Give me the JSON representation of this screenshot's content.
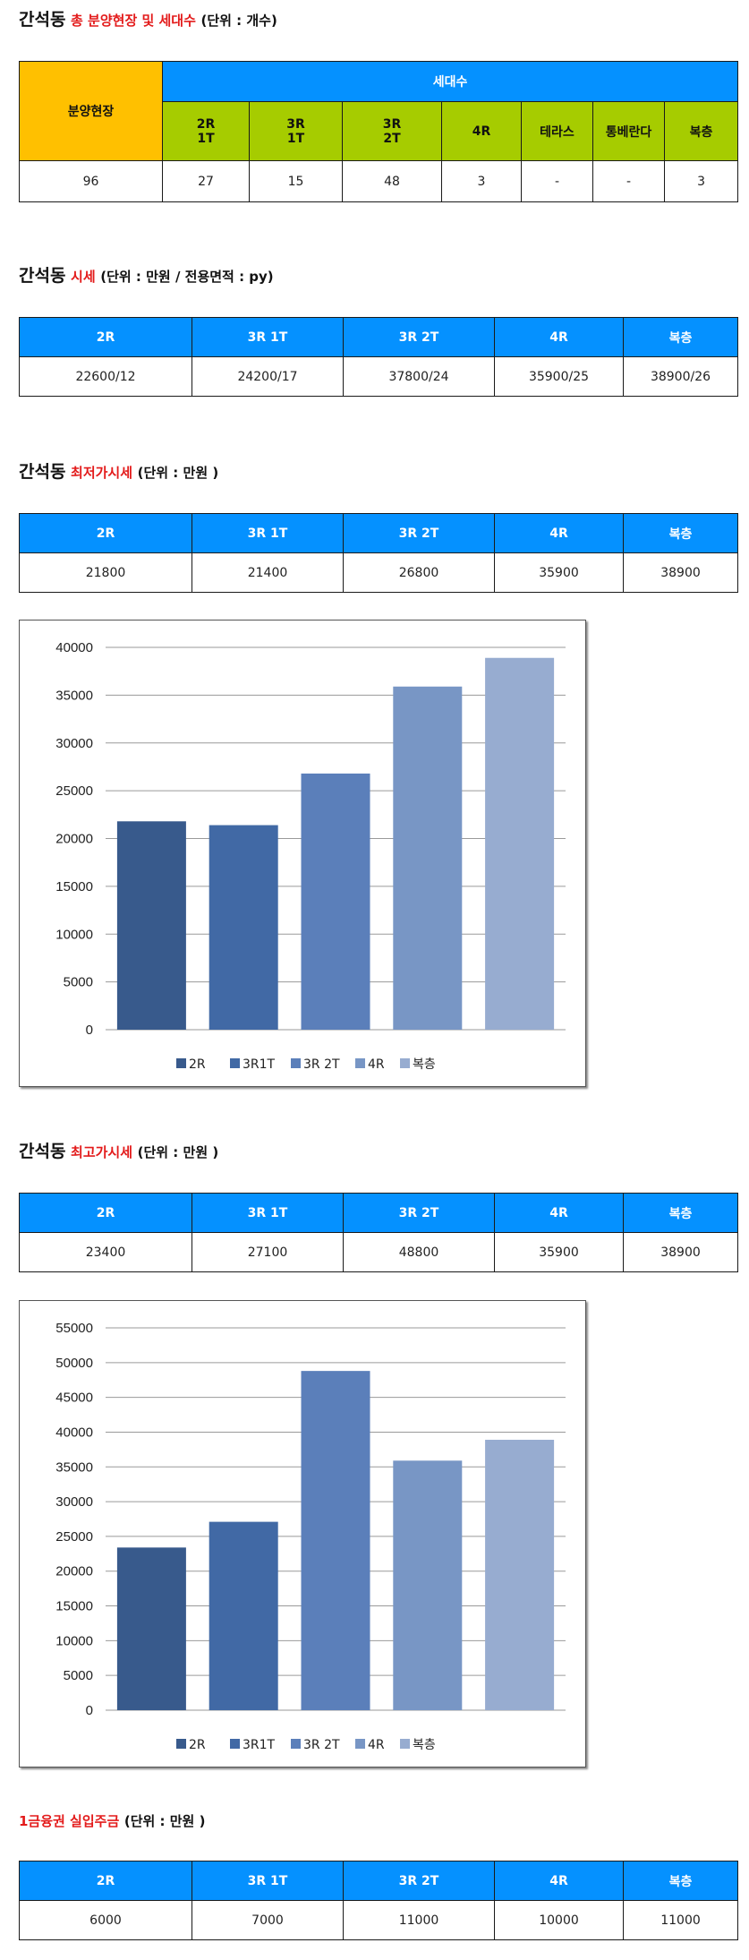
{
  "section1": {
    "title_main": "간석동",
    "title_red": "총 분양현장 및 세대수",
    "title_sub": "(단위 : 개수)",
    "header_sites": "분양현장",
    "header_households": "세대수",
    "sub_headers": [
      [
        "2R",
        "1T"
      ],
      [
        "3R",
        "1T"
      ],
      [
        "3R",
        "2T"
      ],
      [
        "4R"
      ],
      [
        "테라스"
      ],
      [
        "통베란다"
      ],
      [
        "복층"
      ]
    ],
    "values": [
      "96",
      "27",
      "15",
      "48",
      "3",
      "-",
      "-",
      "3"
    ]
  },
  "section2": {
    "title_main": "간석동",
    "title_red": "시세",
    "title_sub": "(단위 : 만원 / 전용면적 : py)",
    "headers": [
      "2R",
      "3R 1T",
      "3R 2T",
      "4R",
      "복층"
    ],
    "values": [
      "22600/12",
      "24200/17",
      "37800/24",
      "35900/25",
      "38900/26"
    ]
  },
  "section3": {
    "title_main": "간석동",
    "title_red": "최저가시세",
    "title_sub": "(단위 : 만원 )",
    "headers": [
      "2R",
      "3R 1T",
      "3R 2T",
      "4R",
      "복층"
    ],
    "values": [
      "21800",
      "21400",
      "26800",
      "35900",
      "38900"
    ]
  },
  "section4": {
    "title_main": "간석동",
    "title_red": "최고가시세",
    "title_sub": "(단위 : 만원 )",
    "headers": [
      "2R",
      "3R 1T",
      "3R 2T",
      "4R",
      "복층"
    ],
    "values": [
      "23400",
      "27100",
      "48800",
      "35900",
      "38900"
    ]
  },
  "section5": {
    "title_red": "1금융권 실입주금",
    "title_sub": "(단위 : 만원 )",
    "headers": [
      "2R",
      "3R 1T",
      "3R 2T",
      "4R",
      "복층"
    ],
    "values": [
      "6000",
      "7000",
      "11000",
      "10000",
      "11000"
    ]
  },
  "chart_data": [
    {
      "type": "bar",
      "categories": [
        "2R",
        "3R1T",
        "3R 2T",
        "4R",
        "복층"
      ],
      "values": [
        21800,
        21400,
        26800,
        35900,
        38900
      ],
      "colors": [
        "#385a8c",
        "#4169a5",
        "#5b7fba",
        "#7896c5",
        "#97acd0"
      ],
      "ylim": [
        0,
        40000
      ],
      "yticks": [
        0,
        5000,
        10000,
        15000,
        20000,
        25000,
        30000,
        35000,
        40000
      ],
      "grid": true,
      "legend": "bottom"
    },
    {
      "type": "bar",
      "categories": [
        "2R",
        "3R1T",
        "3R 2T",
        "4R",
        "복층"
      ],
      "values": [
        23400,
        27100,
        48800,
        35900,
        38900
      ],
      "colors": [
        "#385a8c",
        "#4169a5",
        "#5b7fba",
        "#7896c5",
        "#97acd0"
      ],
      "ylim": [
        0,
        55000
      ],
      "yticks": [
        0,
        5000,
        10000,
        15000,
        20000,
        25000,
        30000,
        35000,
        40000,
        45000,
        50000,
        55000
      ],
      "grid": true,
      "legend": "bottom"
    }
  ]
}
